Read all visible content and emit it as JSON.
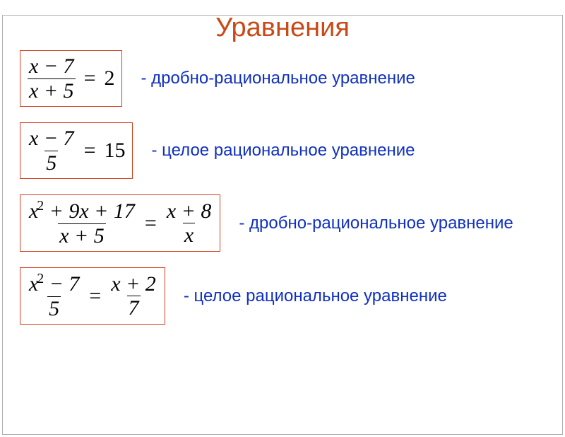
{
  "colors": {
    "title": "#c84a18",
    "caption": "#1030c0",
    "box_border": "#d04020",
    "text": "#000000"
  },
  "fontsize": {
    "title": 38,
    "equation": 30,
    "caption": 24
  },
  "title": "Уравнения",
  "rows": [
    {
      "lhs": {
        "num": "x − 7",
        "den": "x + 5"
      },
      "rhs": {
        "int": "2"
      },
      "caption": "- дробно-рациональное уравнение"
    },
    {
      "lhs": {
        "num": "x − 7",
        "den": "5"
      },
      "rhs": {
        "int": "15"
      },
      "caption": "- целое рациональное уравнение"
    },
    {
      "lhs": {
        "num_html": "x<span class=\"sup\">2</span> + 9x + 17",
        "den": "x + 5"
      },
      "rhs": {
        "num": "x + 8",
        "den": "x"
      },
      "caption": "- дробно-рациональное уравнение"
    },
    {
      "lhs": {
        "num_html": "x<span class=\"sup\">2</span> − 7",
        "den": "5"
      },
      "rhs": {
        "num": "x + 2",
        "den": "7"
      },
      "caption": "- целое рациональное уравнение"
    }
  ]
}
